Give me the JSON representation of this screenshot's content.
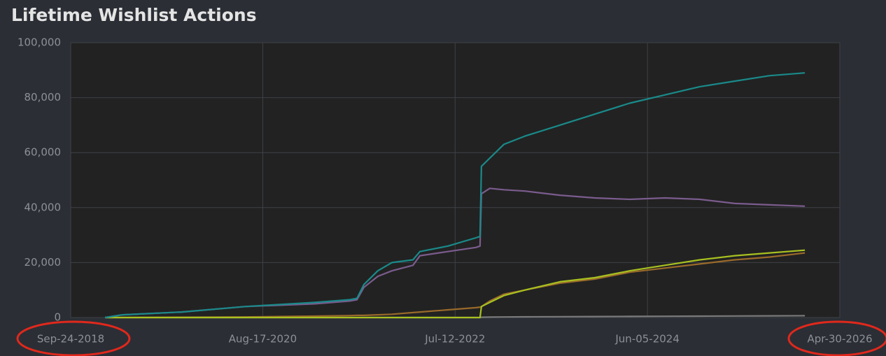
{
  "chart_data": {
    "type": "line",
    "title": "Lifetime Wishlist Actions",
    "x": [
      "2019-01-26",
      "2019-03-30",
      "2019-10-30",
      "2020-06-14",
      "2021-02-21",
      "2021-06-27",
      "2021-07-23",
      "2021-08-17",
      "2021-10-06",
      "2021-11-26",
      "2022-02-10",
      "2022-03-07",
      "2022-06-16",
      "2022-09-25",
      "2022-10-10",
      "2022-10-15",
      "2022-11-14",
      "2023-01-04",
      "2023-03-21",
      "2023-07-25",
      "2023-11-28",
      "2024-04-02",
      "2024-08-07",
      "2024-12-11",
      "2025-04-16",
      "2025-08-20",
      "2025-12-25"
    ],
    "series": [
      {
        "color": "#7a7a7a",
        "values": [
          0,
          0,
          0,
          0,
          0,
          0,
          0,
          0,
          0,
          0,
          0,
          0,
          0,
          0,
          0,
          100,
          150,
          200,
          250,
          300,
          350,
          400,
          450,
          500,
          550,
          600,
          650
        ]
      },
      {
        "color": "#9a6a2a",
        "values": [
          0,
          0,
          100,
          200,
          500,
          700,
          800,
          800,
          1000,
          1200,
          1800,
          2000,
          2800,
          3600,
          3800,
          4000,
          6000,
          8500,
          10000,
          12500,
          14000,
          16500,
          18000,
          19500,
          21000,
          22000,
          23500
        ]
      },
      {
        "color": "#a8c020",
        "values": [
          0,
          0,
          0,
          0,
          0,
          0,
          0,
          0,
          0,
          0,
          0,
          0,
          0,
          0,
          0,
          4000,
          5500,
          8000,
          10000,
          13000,
          14500,
          17000,
          19000,
          21000,
          22500,
          23500,
          24500
        ]
      },
      {
        "color": "#7b5c8e",
        "values": [
          0,
          1000,
          2000,
          4000,
          5000,
          6000,
          6500,
          11000,
          15000,
          17000,
          19000,
          22500,
          24000,
          25500,
          26000,
          45000,
          47000,
          46500,
          46000,
          44500,
          43500,
          43000,
          43500,
          43000,
          41500,
          41000,
          40500
        ]
      },
      {
        "color": "#1a8a8a",
        "values": [
          0,
          1000,
          2000,
          4000,
          5500,
          6500,
          7000,
          12000,
          17000,
          20000,
          21000,
          24000,
          26000,
          29000,
          29500,
          55000,
          58000,
          63000,
          66000,
          70000,
          74000,
          78000,
          81000,
          84000,
          86000,
          88000,
          89000
        ]
      }
    ],
    "xlim": [
      "2018-09-24",
      "2026-04-30"
    ],
    "xticks": [
      {
        "value": "2018-09-24",
        "label": "Sep-24-2018"
      },
      {
        "value": "2020-08-17",
        "label": "Aug-17-2020"
      },
      {
        "value": "2022-07-12",
        "label": "Jul-12-2022"
      },
      {
        "value": "2024-06-05",
        "label": "Jun-05-2024"
      },
      {
        "value": "2026-04-30",
        "label": "Apr-30-2026"
      }
    ],
    "ylim": [
      0,
      100000
    ],
    "yticks": [
      0,
      {
        "value": 20000,
        "label": "20,000"
      },
      {
        "value": 40000,
        "label": "40,000"
      },
      {
        "value": 60000,
        "label": "60,000"
      },
      {
        "value": 80000,
        "label": "80,000"
      },
      {
        "value": 100000,
        "label": "100,000"
      }
    ],
    "grid": true
  }
}
